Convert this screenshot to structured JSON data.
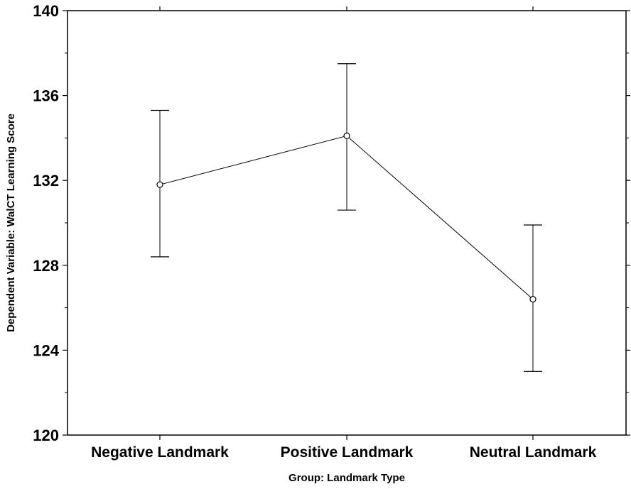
{
  "chart_data": {
    "type": "line",
    "title": "",
    "xlabel": "Group: Landmark Type",
    "ylabel": "Dependent Variable: WalCT Learning Score",
    "categories": [
      "Negative Landmark",
      "Positive Landmark",
      "Neutral Landmark"
    ],
    "series": [
      {
        "values": [
          131.8,
          134.1,
          126.4
        ],
        "error_low": [
          128.4,
          130.6,
          123.0
        ],
        "error_high": [
          135.3,
          137.5,
          129.9
        ]
      }
    ],
    "ylim": [
      120,
      140
    ],
    "yticks": [
      120,
      124,
      128,
      132,
      136,
      140
    ],
    "ytick_labels": [
      "120",
      "124",
      "128",
      "132",
      "136",
      "140"
    ],
    "grid": false,
    "legend": "none",
    "line_color": "#000000"
  }
}
